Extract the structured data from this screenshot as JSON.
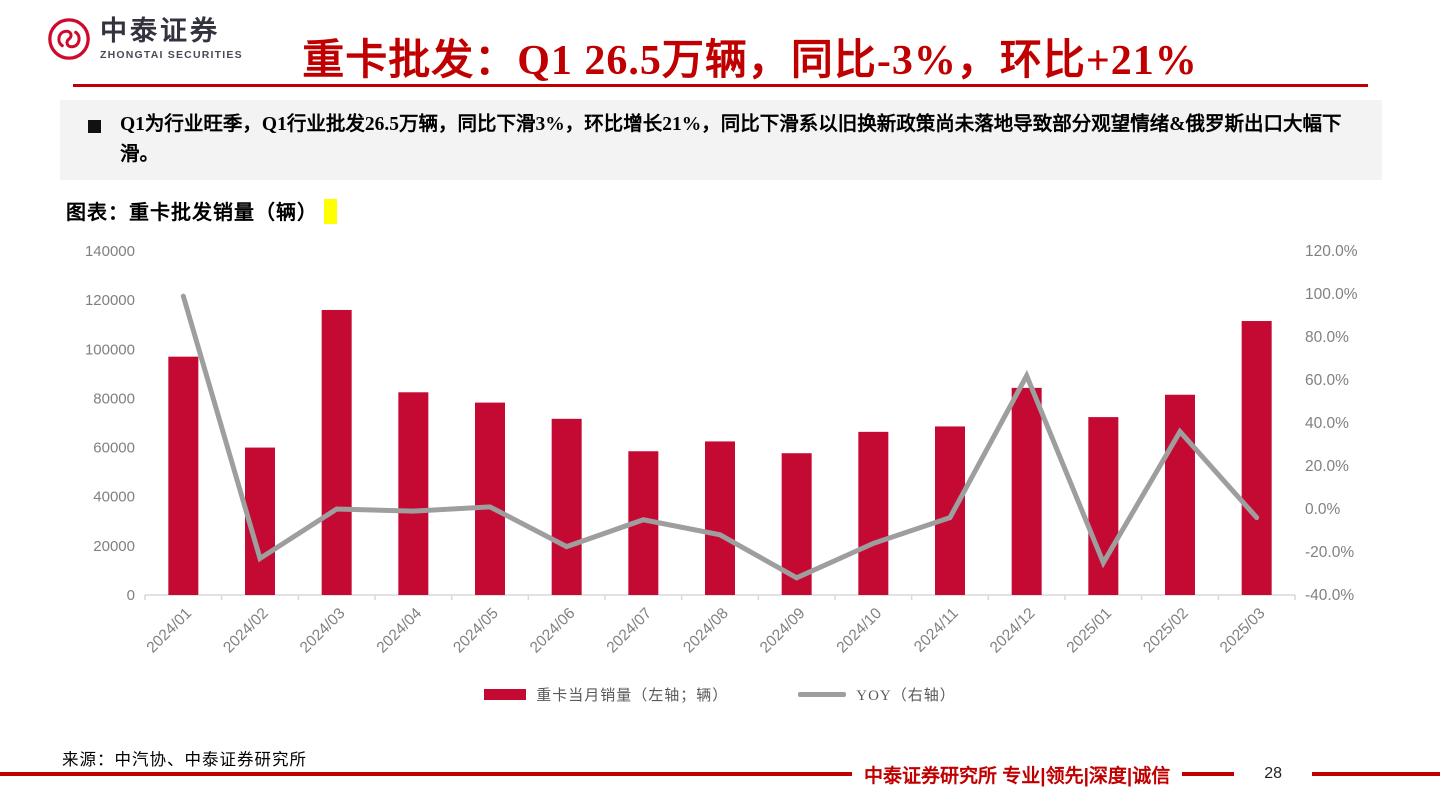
{
  "header": {
    "logo_cn": "中泰证券",
    "logo_en": "ZHONGTAI SECURITIES",
    "title": "重卡批发：Q1 26.5万辆，同比-3%，环比+21%"
  },
  "bullet": {
    "text": "Q1为行业旺季，Q1行业批发26.5万辆，同比下滑3%，环比增长21%，同比下滑系以旧换新政策尚未落地导致部分观望情绪&俄罗斯出口大幅下滑。"
  },
  "figure": {
    "caption": "图表：重卡批发销量（辆）"
  },
  "chart_data": {
    "type": "bar",
    "title": "重卡批发销量（辆）",
    "categories": [
      "2024/01",
      "2024/02",
      "2024/03",
      "2024/04",
      "2024/05",
      "2024/06",
      "2024/07",
      "2024/08",
      "2024/09",
      "2024/10",
      "2024/11",
      "2024/12",
      "2025/01",
      "2025/02",
      "2025/03"
    ],
    "series": [
      {
        "name": "重卡当月销量（左轴；辆）",
        "type": "bar",
        "axis": "left",
        "color": "#c40a33",
        "values": [
          97000,
          60000,
          116000,
          82500,
          78300,
          71700,
          58500,
          62500,
          57700,
          66400,
          68600,
          84300,
          72400,
          81500,
          111500
        ]
      },
      {
        "name": "YOY（右轴）",
        "type": "line",
        "axis": "right",
        "color": "#9e9e9e",
        "values": [
          99,
          -23,
          0,
          -1,
          1,
          -17.5,
          -5,
          -12,
          -32,
          -16,
          -4,
          62,
          -25,
          36,
          -4
        ]
      }
    ],
    "left_axis": {
      "min": 0,
      "max": 140000,
      "step": 20000
    },
    "right_axis": {
      "min": -40,
      "max": 120,
      "step": 20,
      "suffix": "%"
    },
    "grid": false,
    "legend_position": "bottom",
    "axis_color": "#d9d9d9",
    "label_color": "#808080"
  },
  "source": "来源：中汽协、中泰证券研究所",
  "footer": {
    "slogan": "中泰证券研究所 专业|领先|深度|诚信",
    "page": "28"
  }
}
